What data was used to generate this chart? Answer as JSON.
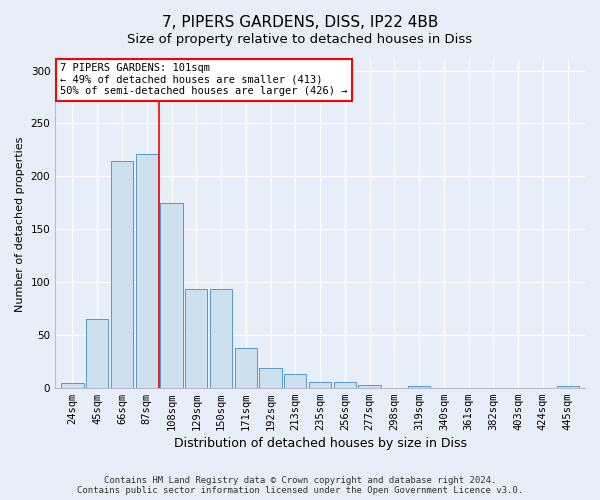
{
  "title": "7, PIPERS GARDENS, DISS, IP22 4BB",
  "subtitle": "Size of property relative to detached houses in Diss",
  "xlabel": "Distribution of detached houses by size in Diss",
  "ylabel": "Number of detached properties",
  "categories": [
    "24sqm",
    "45sqm",
    "66sqm",
    "87sqm",
    "108sqm",
    "129sqm",
    "150sqm",
    "171sqm",
    "192sqm",
    "213sqm",
    "235sqm",
    "256sqm",
    "277sqm",
    "298sqm",
    "319sqm",
    "340sqm",
    "361sqm",
    "382sqm",
    "403sqm",
    "424sqm",
    "445sqm"
  ],
  "values": [
    4,
    65,
    214,
    221,
    175,
    93,
    93,
    38,
    19,
    13,
    5,
    5,
    3,
    0,
    2,
    0,
    0,
    0,
    0,
    0,
    2
  ],
  "bar_color": "#cce0f0",
  "bar_edge_color": "#5599cc",
  "red_line_x": 3.5,
  "annotation_text": "7 PIPERS GARDENS: 101sqm\n← 49% of detached houses are smaller (413)\n50% of semi-detached houses are larger (426) →",
  "annotation_box_color": "white",
  "annotation_box_edge_color": "red",
  "ylim": [
    0,
    310
  ],
  "yticks": [
    0,
    50,
    100,
    150,
    200,
    250,
    300
  ],
  "bg_color": "#e8eef8",
  "plot_bg_color": "#e8eef8",
  "footer": "Contains HM Land Registry data © Crown copyright and database right 2024.\nContains public sector information licensed under the Open Government Licence v3.0.",
  "title_fontsize": 11,
  "subtitle_fontsize": 9.5,
  "xlabel_fontsize": 9,
  "ylabel_fontsize": 8,
  "tick_fontsize": 7.5,
  "footer_fontsize": 6.5
}
